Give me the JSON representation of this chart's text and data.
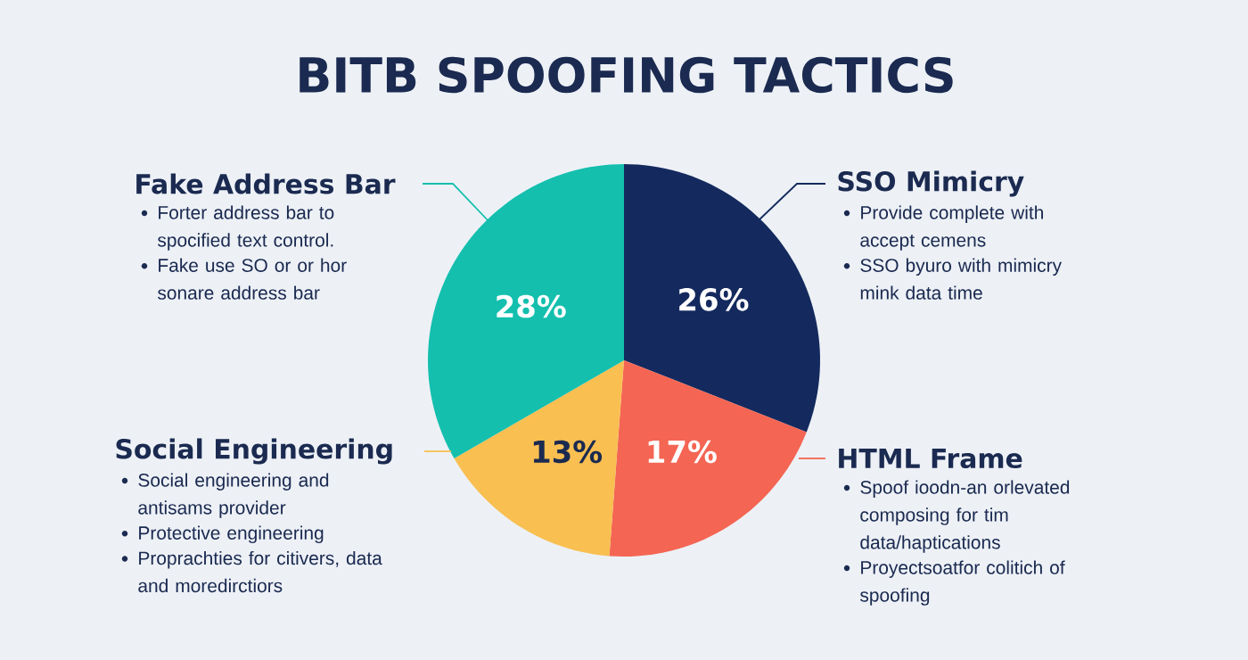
{
  "chart_data": {
    "type": "pie",
    "title": "BITB SPOOFING TACTICS",
    "categories": [
      "SSO Mimicry",
      "HTML Frame",
      "Social Engineering",
      "Fake Address Bar"
    ],
    "values": [
      26,
      17,
      13,
      28
    ],
    "colors": [
      "#142a5e",
      "#f46553",
      "#f9bf51",
      "#14bfae"
    ],
    "value_labels": [
      "26%",
      "17%",
      "13%",
      "28%"
    ],
    "annotations": [
      "Provide complete with accept cemens",
      "SSO byuro with  mimicry mink data time",
      "Spoof ioodn-an orlevated composing for tim data/haptications",
      "Proyectsoatfor colitich of spoofing",
      "Social engineering and antisams provider",
      "Protective engineering",
      "Proprachties for citivers, data and moredirctiors",
      "Forter address bar to spocified text control.",
      "Fake use SO or or hor sonare address bar"
    ]
  }
}
